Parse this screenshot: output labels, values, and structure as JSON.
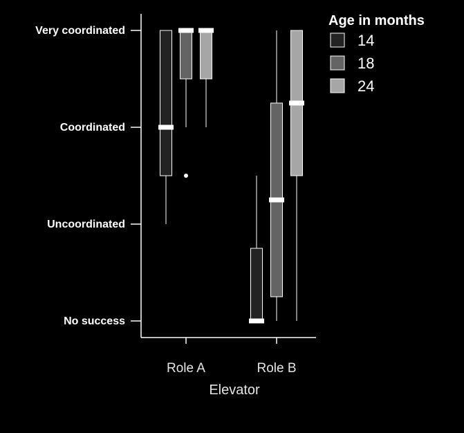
{
  "chart_data": {
    "type": "boxplot",
    "title": "",
    "xlabel": "Elevator",
    "ylabel": "",
    "categories": [
      "Role A",
      "Role B"
    ],
    "y_levels": [
      "No success",
      "Uncoordinated",
      "Coordinated",
      "Very coordinated"
    ],
    "y_values": [
      0,
      1,
      2,
      3
    ],
    "ylim": [
      0,
      3
    ],
    "grid": false,
    "legend": {
      "title": "Age in months",
      "placement": "right",
      "entries": [
        "14",
        "18",
        "24"
      ]
    },
    "series": [
      {
        "name": "14",
        "color": "#232323",
        "boxes": [
          {
            "category": "Role A",
            "min": 1,
            "q1": 1.5,
            "median": 2,
            "q3": 3,
            "max": 3,
            "outliers": []
          },
          {
            "category": "Role B",
            "min": 0,
            "q1": 0,
            "median": 0,
            "q3": 0.75,
            "max": 1.5,
            "outliers": []
          }
        ]
      },
      {
        "name": "18",
        "color": "#646464",
        "boxes": [
          {
            "category": "Role A",
            "min": 2,
            "q1": 2.5,
            "median": 3,
            "q3": 3,
            "max": 3,
            "outliers": [
              1.5
            ]
          },
          {
            "category": "Role B",
            "min": 0,
            "q1": 0.25,
            "median": 1.25,
            "q3": 2.25,
            "max": 3,
            "outliers": []
          }
        ]
      },
      {
        "name": "24",
        "color": "#a6a6a6",
        "boxes": [
          {
            "category": "Role A",
            "min": 2,
            "q1": 2.5,
            "median": 3,
            "q3": 3,
            "max": 3,
            "outliers": []
          },
          {
            "category": "Role B",
            "min": 0,
            "q1": 1.5,
            "median": 2.25,
            "q3": 3,
            "max": 3,
            "outliers": []
          }
        ]
      }
    ]
  }
}
